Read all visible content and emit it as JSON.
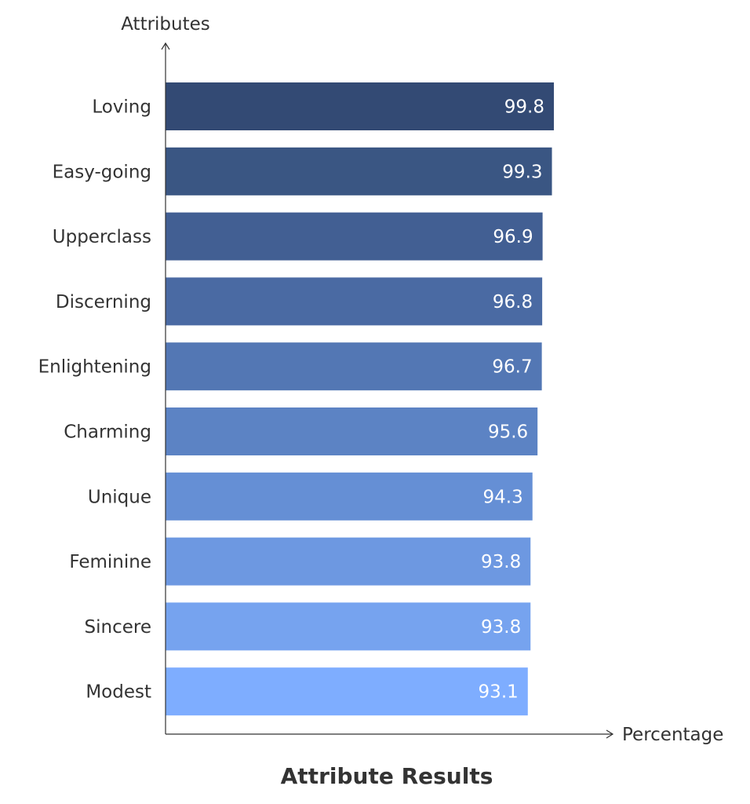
{
  "chart_data": {
    "type": "bar",
    "orientation": "horizontal",
    "title": "Attribute Results",
    "xlabel": "Percentage",
    "ylabel": "Attributes",
    "categories": [
      "Loving",
      "Easy-going",
      "Upperclass",
      "Discerning",
      "Enlightening",
      "Charming",
      "Unique",
      "Feminine",
      "Sincere",
      "Modest"
    ],
    "values": [
      99.8,
      99.3,
      96.9,
      96.8,
      96.7,
      95.6,
      94.3,
      93.8,
      93.8,
      93.1
    ],
    "value_labels": [
      "99.8",
      "99.3",
      "96.9",
      "96.8",
      "96.7",
      "95.6",
      "94.3",
      "93.8",
      "93.8",
      "93.1"
    ],
    "xlim": [
      0,
      100
    ],
    "grid": false,
    "legend": "none",
    "bar_colors": [
      "#334a74",
      "#3a5683",
      "#425f93",
      "#4a6aa3",
      "#5377b4",
      "#5c83c4",
      "#658fd5",
      "#6d98e1",
      "#76a3ef",
      "#7eadff"
    ]
  }
}
